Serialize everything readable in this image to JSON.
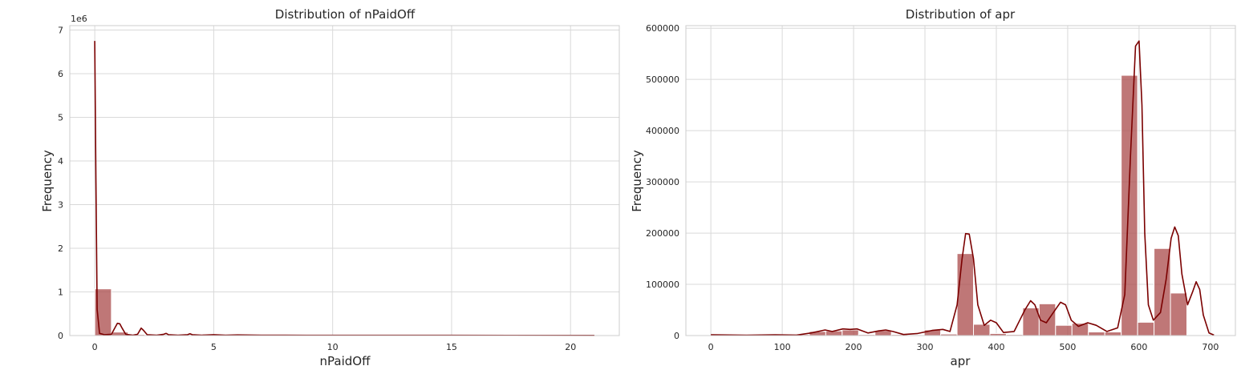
{
  "chart_data": [
    {
      "type": "bar",
      "title": "Distribution of nPaidOff",
      "xlabel": "nPaidOff",
      "ylabel": "Frequency",
      "offset_text": "1e6",
      "xlim": [
        -1.05,
        22.05
      ],
      "ylim": [
        0,
        7.1
      ],
      "xticks": [
        0,
        5,
        10,
        15,
        20
      ],
      "yticks": [
        0,
        1,
        2,
        3,
        4,
        5,
        6,
        7
      ],
      "grid": true,
      "colors": {
        "bar": "#a94a4a",
        "kde": "#7b0000",
        "grid": "#d9d9d9",
        "spine": "#cccccc"
      },
      "bins": [
        {
          "x0": 0.0,
          "x1": 0.7,
          "value": 1.07
        },
        {
          "x0": 0.7,
          "x1": 1.4,
          "value": 0.08
        },
        {
          "x0": 1.4,
          "x1": 2.1,
          "value": 0.025
        },
        {
          "x0": 2.1,
          "x1": 2.8,
          "value": 0.01
        },
        {
          "x0": 2.8,
          "x1": 3.5,
          "value": 0.012
        },
        {
          "x0": 3.5,
          "x1": 4.2,
          "value": 0.008
        },
        {
          "x0": 4.2,
          "x1": 4.9,
          "value": 0.005
        },
        {
          "x0": 4.9,
          "x1": 5.6,
          "value": 0.004
        },
        {
          "x0": 5.6,
          "x1": 6.3,
          "value": 0.003
        },
        {
          "x0": 6.3,
          "x1": 7.0,
          "value": 0.002
        },
        {
          "x0": 7.0,
          "x1": 21.0,
          "value": 0.002
        }
      ],
      "kde": [
        [
          0.0,
          6.75
        ],
        [
          0.05,
          3.5
        ],
        [
          0.1,
          0.6
        ],
        [
          0.2,
          0.05
        ],
        [
          0.4,
          0.02
        ],
        [
          0.7,
          0.03
        ],
        [
          0.85,
          0.18
        ],
        [
          0.95,
          0.28
        ],
        [
          1.05,
          0.27
        ],
        [
          1.15,
          0.17
        ],
        [
          1.3,
          0.03
        ],
        [
          1.6,
          0.01
        ],
        [
          1.8,
          0.03
        ],
        [
          1.95,
          0.17
        ],
        [
          2.05,
          0.12
        ],
        [
          2.2,
          0.02
        ],
        [
          2.6,
          0.01
        ],
        [
          2.9,
          0.03
        ],
        [
          3.0,
          0.05
        ],
        [
          3.1,
          0.02
        ],
        [
          3.5,
          0.01
        ],
        [
          3.9,
          0.02
        ],
        [
          4.0,
          0.04
        ],
        [
          4.1,
          0.02
        ],
        [
          4.5,
          0.01
        ],
        [
          5.0,
          0.02
        ],
        [
          5.5,
          0.01
        ],
        [
          6.0,
          0.015
        ],
        [
          7.0,
          0.01
        ],
        [
          8.0,
          0.008
        ],
        [
          10.0,
          0.006
        ],
        [
          15.0,
          0.005
        ],
        [
          21.0,
          0.004
        ]
      ]
    },
    {
      "type": "bar",
      "title": "Distribution of apr",
      "xlabel": "apr",
      "ylabel": "Frequency",
      "xlim": [
        -35,
        735
      ],
      "ylim": [
        0,
        605000
      ],
      "xticks": [
        0,
        100,
        200,
        300,
        400,
        500,
        600,
        700
      ],
      "yticks": [
        0,
        100000,
        200000,
        300000,
        400000,
        500000,
        600000
      ],
      "grid": true,
      "colors": {
        "bar": "#a94a4a",
        "kde": "#7b0000",
        "grid": "#d9d9d9",
        "spine": "#cccccc"
      },
      "bins": [
        {
          "x0": 0,
          "x1": 23,
          "value": 1500
        },
        {
          "x0": 23,
          "x1": 46,
          "value": 1000
        },
        {
          "x0": 46,
          "x1": 69,
          "value": 1000
        },
        {
          "x0": 69,
          "x1": 92,
          "value": 1500
        },
        {
          "x0": 92,
          "x1": 115,
          "value": 1000
        },
        {
          "x0": 115,
          "x1": 138,
          "value": 2000
        },
        {
          "x0": 138,
          "x1": 161,
          "value": 8000
        },
        {
          "x0": 161,
          "x1": 184,
          "value": 9000
        },
        {
          "x0": 184,
          "x1": 207,
          "value": 11000
        },
        {
          "x0": 207,
          "x1": 230,
          "value": 2000
        },
        {
          "x0": 230,
          "x1": 253,
          "value": 10000
        },
        {
          "x0": 253,
          "x1": 276,
          "value": 2000
        },
        {
          "x0": 276,
          "x1": 299,
          "value": 1000
        },
        {
          "x0": 299,
          "x1": 322,
          "value": 11000
        },
        {
          "x0": 322,
          "x1": 345,
          "value": 3000
        },
        {
          "x0": 345,
          "x1": 368,
          "value": 160000
        },
        {
          "x0": 368,
          "x1": 391,
          "value": 22000
        },
        {
          "x0": 391,
          "x1": 414,
          "value": 4000
        },
        {
          "x0": 414,
          "x1": 437,
          "value": 2000
        },
        {
          "x0": 437,
          "x1": 460,
          "value": 54000
        },
        {
          "x0": 460,
          "x1": 483,
          "value": 62000
        },
        {
          "x0": 483,
          "x1": 506,
          "value": 20000
        },
        {
          "x0": 506,
          "x1": 529,
          "value": 24000
        },
        {
          "x0": 529,
          "x1": 552,
          "value": 7000
        },
        {
          "x0": 552,
          "x1": 575,
          "value": 7000
        },
        {
          "x0": 575,
          "x1": 598,
          "value": 508000
        },
        {
          "x0": 598,
          "x1": 621,
          "value": 26000
        },
        {
          "x0": 621,
          "x1": 644,
          "value": 170000
        },
        {
          "x0": 644,
          "x1": 667,
          "value": 83000
        },
        {
          "x0": 667,
          "x1": 690,
          "value": 1000
        }
      ],
      "kde": [
        [
          0,
          1500
        ],
        [
          50,
          800
        ],
        [
          90,
          1500
        ],
        [
          120,
          1000
        ],
        [
          140,
          5000
        ],
        [
          160,
          11000
        ],
        [
          170,
          8000
        ],
        [
          185,
          13000
        ],
        [
          195,
          12000
        ],
        [
          205,
          13000
        ],
        [
          220,
          5000
        ],
        [
          235,
          9000
        ],
        [
          245,
          11000
        ],
        [
          255,
          8000
        ],
        [
          270,
          2000
        ],
        [
          290,
          4000
        ],
        [
          310,
          10000
        ],
        [
          325,
          12000
        ],
        [
          335,
          8000
        ],
        [
          345,
          60000
        ],
        [
          352,
          150000
        ],
        [
          357,
          199000
        ],
        [
          362,
          198000
        ],
        [
          368,
          150000
        ],
        [
          374,
          60000
        ],
        [
          383,
          20000
        ],
        [
          392,
          30000
        ],
        [
          400,
          25000
        ],
        [
          410,
          6000
        ],
        [
          425,
          8000
        ],
        [
          440,
          50000
        ],
        [
          448,
          68000
        ],
        [
          454,
          60000
        ],
        [
          462,
          30000
        ],
        [
          470,
          25000
        ],
        [
          480,
          45000
        ],
        [
          490,
          65000
        ],
        [
          497,
          60000
        ],
        [
          505,
          30000
        ],
        [
          515,
          18000
        ],
        [
          528,
          25000
        ],
        [
          540,
          20000
        ],
        [
          555,
          8000
        ],
        [
          570,
          15000
        ],
        [
          580,
          80000
        ],
        [
          588,
          350000
        ],
        [
          595,
          565000
        ],
        [
          600,
          575000
        ],
        [
          604,
          450000
        ],
        [
          608,
          200000
        ],
        [
          613,
          60000
        ],
        [
          620,
          30000
        ],
        [
          630,
          45000
        ],
        [
          638,
          110000
        ],
        [
          645,
          190000
        ],
        [
          650,
          212000
        ],
        [
          655,
          195000
        ],
        [
          660,
          120000
        ],
        [
          668,
          60000
        ],
        [
          675,
          85000
        ],
        [
          680,
          105000
        ],
        [
          685,
          90000
        ],
        [
          690,
          40000
        ],
        [
          698,
          5000
        ],
        [
          705,
          1000
        ]
      ]
    }
  ]
}
